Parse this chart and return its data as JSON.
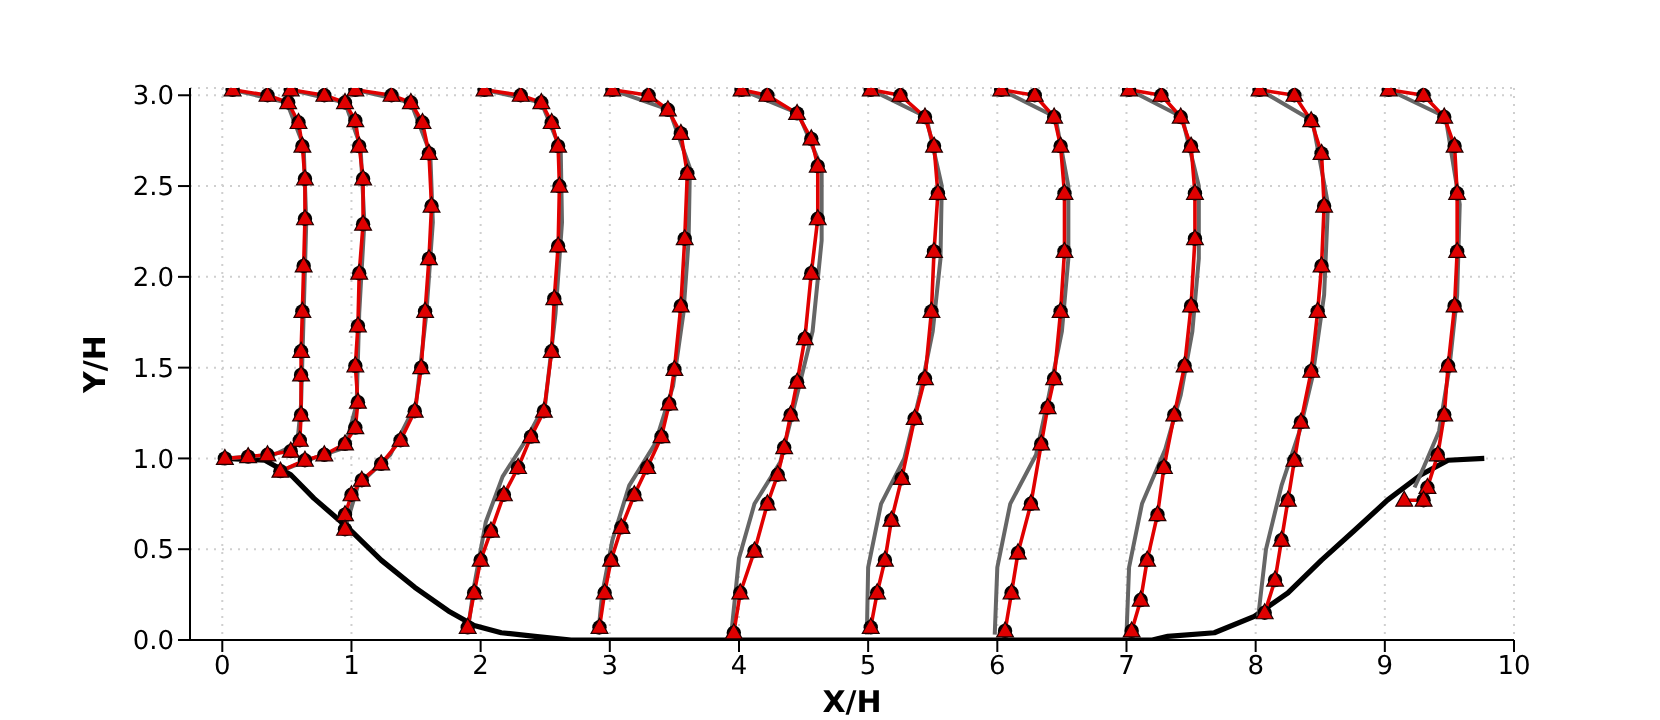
{
  "chart_data": {
    "type": "line",
    "xlabel": "X/H",
    "ylabel": "Y/H",
    "xlim": [
      -0.25,
      10
    ],
    "ylim": [
      0,
      3.04
    ],
    "xticks": [
      0,
      1,
      2,
      3,
      4,
      5,
      6,
      7,
      8,
      9,
      10
    ],
    "yticks": [
      {
        "value": 0,
        "label": "0.0"
      },
      0.5,
      {
        "value": 1,
        "label": "1.0"
      },
      1.5,
      {
        "value": 2,
        "label": "2.0"
      },
      2.5,
      {
        "value": 3,
        "label": "3.0"
      }
    ],
    "grid": true,
    "legend": false,
    "series": [
      {
        "color": "#000000",
        "marker": "none",
        "x": [
          0.02,
          0.33,
          0.53,
          0.71,
          0.97,
          1.23,
          1.49,
          1.75,
          1.95,
          2.16,
          2.42,
          2.7,
          7.2,
          7.32,
          7.68,
          7.99,
          8.25,
          8.51,
          8.76,
          9.02,
          9.28,
          9.49,
          9.77
        ],
        "values": [
          1.0,
          0.99,
          0.91,
          0.78,
          0.62,
          0.44,
          0.29,
          0.16,
          0.08,
          0.04,
          0.02,
          0,
          0,
          0.02,
          0.04,
          0.13,
          0.26,
          0.44,
          0.6,
          0.77,
          0.91,
          0.99,
          1.0
        ]
      },
      {
        "color": "#666666",
        "marker": "none",
        "x": [
          0.08,
          0.5,
          0.63,
          0.65,
          0.63,
          0.61,
          0.58,
          0.4,
          0.02,
          null,
          0.53,
          0.95,
          1.07,
          1.1,
          1.06,
          1.04,
          0.95,
          0.7,
          0.45,
          null,
          1.03,
          1.46,
          1.61,
          1.63,
          1.58,
          1.5,
          1.3,
          1.05,
          0.95,
          null,
          2.03,
          2.47,
          2.62,
          2.63,
          2.58,
          2.5,
          2.35,
          2.17,
          2.04,
          1.95,
          1.9,
          null,
          3.02,
          3.46,
          3.62,
          3.61,
          3.57,
          3.49,
          3.35,
          3.15,
          3.02,
          2.94,
          2.91,
          null,
          4.02,
          4.46,
          4.64,
          4.64,
          4.57,
          4.45,
          4.32,
          4.12,
          4.0,
          3.94,
          null,
          5.02,
          5.45,
          5.57,
          5.56,
          5.5,
          5.4,
          5.28,
          5.1,
          5.0,
          4.99,
          null,
          6.03,
          6.45,
          6.55,
          6.55,
          6.5,
          6.4,
          6.3,
          6.1,
          6.0,
          5.98,
          null,
          7.02,
          7.43,
          7.56,
          7.56,
          7.51,
          7.42,
          7.3,
          7.12,
          7.02,
          7.0,
          null,
          8.03,
          8.44,
          8.56,
          8.53,
          8.44,
          8.34,
          8.2,
          8.08,
          8.02,
          null,
          9.03,
          9.47,
          9.58,
          9.56,
          9.5,
          9.42,
          9.3,
          9.23
        ],
        "values": [
          3.03,
          2.96,
          2.72,
          2.3,
          1.8,
          1.3,
          1.08,
          1.02,
          1.0,
          null,
          3.03,
          2.96,
          2.72,
          2.3,
          1.8,
          1.3,
          1.06,
          1.0,
          0.93,
          null,
          3.03,
          2.96,
          2.68,
          2.3,
          1.8,
          1.3,
          1.02,
          0.85,
          0.61,
          null,
          3.03,
          2.96,
          2.7,
          2.3,
          1.8,
          1.3,
          1.1,
          0.9,
          0.65,
          0.3,
          0.05,
          null,
          3.03,
          2.92,
          2.6,
          2.2,
          1.8,
          1.4,
          1.08,
          0.85,
          0.55,
          0.25,
          0.03,
          null,
          3.03,
          2.9,
          2.6,
          2.2,
          1.7,
          1.35,
          0.98,
          0.75,
          0.45,
          0.03,
          null,
          3.03,
          2.88,
          2.5,
          2.1,
          1.7,
          1.35,
          1.0,
          0.75,
          0.4,
          0.03,
          null,
          3.03,
          2.88,
          2.5,
          2.1,
          1.7,
          1.35,
          1.02,
          0.75,
          0.4,
          0.03,
          null,
          3.03,
          2.88,
          2.5,
          2.1,
          1.7,
          1.35,
          1.05,
          0.75,
          0.4,
          0.03,
          null,
          3.03,
          2.86,
          2.4,
          1.9,
          1.45,
          1.15,
          0.85,
          0.5,
          0.13,
          null,
          3.03,
          2.88,
          2.4,
          1.9,
          1.5,
          1.15,
          0.95,
          0.84
        ]
      },
      {
        "type": "scatter",
        "color": "#000000",
        "marker": "circle",
        "x": [
          0.08,
          0.35,
          0.51,
          0.59,
          0.62,
          0.64,
          0.64,
          0.63,
          0.62,
          0.61,
          0.61,
          0.61,
          0.6,
          0.53,
          0.35,
          0.2,
          0.02,
          0.53,
          0.79,
          0.95,
          1.03,
          1.06,
          1.09,
          1.09,
          1.06,
          1.05,
          1.03,
          1.05,
          1.03,
          0.95,
          0.79,
          0.64,
          0.45,
          1.03,
          1.31,
          1.46,
          1.55,
          1.6,
          1.62,
          1.6,
          1.57,
          1.54,
          1.49,
          1.38,
          1.23,
          1.08,
          1.0,
          0.95,
          0.95,
          2.03,
          2.31,
          2.47,
          2.55,
          2.6,
          2.61,
          2.6,
          2.57,
          2.55,
          2.49,
          2.39,
          2.29,
          2.18,
          2.08,
          2.0,
          1.95,
          1.9,
          3.02,
          3.3,
          3.45,
          3.55,
          3.6,
          3.58,
          3.55,
          3.5,
          3.46,
          3.4,
          3.29,
          3.19,
          3.09,
          3.01,
          2.96,
          2.92,
          4.02,
          4.22,
          4.45,
          4.56,
          4.61,
          4.61,
          4.56,
          4.51,
          4.45,
          4.4,
          4.35,
          4.3,
          4.22,
          4.12,
          4.01,
          3.96,
          5.02,
          5.25,
          5.44,
          5.51,
          5.54,
          5.51,
          5.49,
          5.44,
          5.36,
          5.26,
          5.18,
          5.13,
          5.07,
          5.02,
          6.03,
          6.29,
          6.44,
          6.49,
          6.52,
          6.52,
          6.49,
          6.44,
          6.39,
          6.34,
          6.26,
          6.16,
          6.11,
          6.06,
          7.02,
          7.27,
          7.42,
          7.5,
          7.53,
          7.53,
          7.5,
          7.45,
          7.37,
          7.29,
          7.24,
          7.16,
          7.11,
          7.04,
          8.03,
          8.3,
          8.43,
          8.51,
          8.53,
          8.51,
          8.48,
          8.43,
          8.35,
          8.3,
          8.25,
          8.2,
          8.15,
          8.07,
          9.03,
          9.3,
          9.46,
          9.54,
          9.56,
          9.56,
          9.54,
          9.49,
          9.46,
          9.41,
          9.33,
          9.3
        ],
        "values": [
          3.03,
          3.0,
          2.96,
          2.85,
          2.72,
          2.54,
          2.32,
          2.06,
          1.81,
          1.59,
          1.46,
          1.24,
          1.1,
          1.04,
          1.02,
          1.01,
          1.0,
          3.03,
          3.0,
          2.96,
          2.86,
          2.72,
          2.54,
          2.29,
          2.02,
          1.73,
          1.51,
          1.31,
          1.17,
          1.08,
          1.02,
          0.99,
          0.93,
          3.03,
          3.0,
          2.96,
          2.85,
          2.68,
          2.39,
          2.1,
          1.81,
          1.5,
          1.26,
          1.1,
          0.97,
          0.88,
          0.8,
          0.69,
          0.61,
          3.03,
          3.0,
          2.96,
          2.85,
          2.72,
          2.5,
          2.17,
          1.88,
          1.59,
          1.26,
          1.12,
          0.95,
          0.8,
          0.6,
          0.44,
          0.26,
          0.07,
          3.03,
          3.0,
          2.92,
          2.79,
          2.57,
          2.21,
          1.84,
          1.49,
          1.3,
          1.12,
          0.95,
          0.8,
          0.62,
          0.44,
          0.26,
          0.07,
          3.03,
          3.0,
          2.9,
          2.76,
          2.61,
          2.32,
          2.02,
          1.66,
          1.42,
          1.24,
          1.06,
          0.91,
          0.75,
          0.49,
          0.26,
          0.04,
          3.03,
          3.0,
          2.88,
          2.72,
          2.46,
          2.14,
          1.81,
          1.44,
          1.22,
          0.89,
          0.66,
          0.44,
          0.26,
          0.07,
          3.03,
          3.0,
          2.88,
          2.72,
          2.46,
          2.14,
          1.81,
          1.44,
          1.28,
          1.08,
          0.75,
          0.48,
          0.26,
          0.05,
          3.03,
          3.0,
          2.88,
          2.72,
          2.46,
          2.21,
          1.84,
          1.51,
          1.24,
          0.95,
          0.69,
          0.44,
          0.22,
          0.05,
          3.03,
          3.0,
          2.86,
          2.68,
          2.39,
          2.06,
          1.81,
          1.48,
          1.2,
          0.99,
          0.77,
          0.55,
          0.33,
          0.15,
          3.03,
          3.0,
          2.88,
          2.72,
          2.46,
          2.14,
          1.84,
          1.51,
          1.24,
          1.02,
          0.84,
          0.77
        ]
      },
      {
        "color": "#e00000",
        "marker": "triangle",
        "x": [
          0.08,
          0.35,
          0.51,
          0.59,
          0.62,
          0.64,
          0.64,
          0.63,
          0.62,
          0.61,
          0.61,
          0.61,
          0.6,
          0.53,
          0.35,
          0.2,
          0.02,
          null,
          0.53,
          0.79,
          0.95,
          1.03,
          1.06,
          1.09,
          1.09,
          1.06,
          1.05,
          1.03,
          1.05,
          1.03,
          0.95,
          0.79,
          0.64,
          0.45,
          null,
          1.03,
          1.31,
          1.46,
          1.55,
          1.6,
          1.62,
          1.6,
          1.57,
          1.54,
          1.49,
          1.38,
          1.23,
          1.08,
          1.0,
          0.95,
          0.95,
          null,
          2.03,
          2.31,
          2.47,
          2.55,
          2.6,
          2.61,
          2.6,
          2.57,
          2.55,
          2.49,
          2.39,
          2.29,
          2.18,
          2.08,
          2.0,
          1.95,
          1.9,
          null,
          3.02,
          3.3,
          3.45,
          3.55,
          3.6,
          3.58,
          3.55,
          3.5,
          3.46,
          3.4,
          3.29,
          3.19,
          3.09,
          3.01,
          2.96,
          2.92,
          null,
          4.02,
          4.22,
          4.45,
          4.56,
          4.61,
          4.61,
          4.56,
          4.51,
          4.45,
          4.4,
          4.35,
          4.3,
          4.22,
          4.12,
          4.01,
          3.96,
          null,
          5.02,
          5.25,
          5.44,
          5.51,
          5.54,
          5.51,
          5.49,
          5.44,
          5.36,
          5.26,
          5.18,
          5.13,
          5.07,
          5.02,
          null,
          6.03,
          6.29,
          6.44,
          6.49,
          6.52,
          6.52,
          6.49,
          6.44,
          6.39,
          6.34,
          6.26,
          6.16,
          6.11,
          6.06,
          null,
          7.02,
          7.27,
          7.42,
          7.5,
          7.53,
          7.53,
          7.5,
          7.45,
          7.37,
          7.29,
          7.24,
          7.16,
          7.11,
          7.04,
          null,
          8.03,
          8.3,
          8.43,
          8.51,
          8.53,
          8.51,
          8.48,
          8.43,
          8.35,
          8.3,
          8.25,
          8.2,
          8.15,
          8.07,
          null,
          9.03,
          9.3,
          9.46,
          9.54,
          9.56,
          9.56,
          9.54,
          9.49,
          9.46,
          9.41,
          9.33,
          9.3,
          9.15
        ],
        "values": [
          3.03,
          3.0,
          2.96,
          2.85,
          2.72,
          2.54,
          2.32,
          2.06,
          1.81,
          1.59,
          1.46,
          1.24,
          1.1,
          1.04,
          1.02,
          1.01,
          1.0,
          null,
          3.03,
          3.0,
          2.96,
          2.86,
          2.72,
          2.54,
          2.29,
          2.02,
          1.73,
          1.51,
          1.31,
          1.17,
          1.08,
          1.02,
          0.99,
          0.93,
          null,
          3.03,
          3.0,
          2.96,
          2.85,
          2.68,
          2.39,
          2.1,
          1.81,
          1.5,
          1.26,
          1.1,
          0.97,
          0.88,
          0.8,
          0.69,
          0.61,
          null,
          3.03,
          3.0,
          2.96,
          2.85,
          2.72,
          2.5,
          2.17,
          1.88,
          1.59,
          1.26,
          1.12,
          0.95,
          0.8,
          0.6,
          0.44,
          0.26,
          0.07,
          null,
          3.03,
          3.0,
          2.92,
          2.79,
          2.57,
          2.21,
          1.84,
          1.49,
          1.3,
          1.12,
          0.95,
          0.8,
          0.62,
          0.44,
          0.26,
          0.07,
          null,
          3.03,
          3.0,
          2.9,
          2.76,
          2.61,
          2.32,
          2.02,
          1.66,
          1.42,
          1.24,
          1.06,
          0.91,
          0.75,
          0.49,
          0.26,
          0.04,
          null,
          3.03,
          3.0,
          2.88,
          2.72,
          2.46,
          2.14,
          1.81,
          1.44,
          1.22,
          0.89,
          0.66,
          0.44,
          0.26,
          0.07,
          null,
          3.03,
          3.0,
          2.88,
          2.72,
          2.46,
          2.14,
          1.81,
          1.44,
          1.28,
          1.08,
          0.75,
          0.48,
          0.26,
          0.05,
          null,
          3.03,
          3.0,
          2.88,
          2.72,
          2.46,
          2.21,
          1.84,
          1.51,
          1.24,
          0.95,
          0.69,
          0.44,
          0.22,
          0.05,
          null,
          3.03,
          3.0,
          2.86,
          2.68,
          2.39,
          2.06,
          1.81,
          1.48,
          1.2,
          0.99,
          0.77,
          0.55,
          0.33,
          0.15,
          null,
          3.03,
          3.0,
          2.88,
          2.72,
          2.46,
          2.14,
          1.84,
          1.51,
          1.24,
          1.02,
          0.84,
          0.77,
          0.77
        ]
      }
    ]
  }
}
